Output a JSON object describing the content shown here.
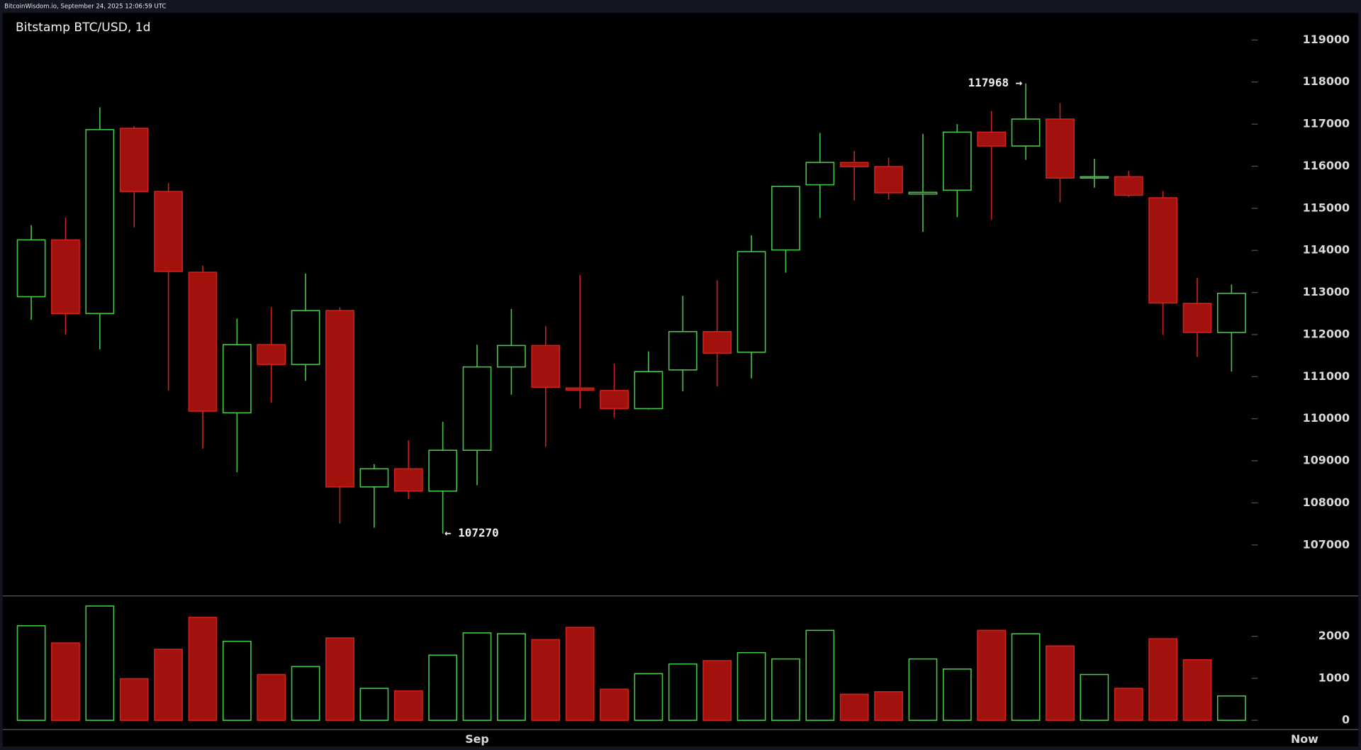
{
  "header": "BitcoinWisdom.io, September 24, 2025 12:06:59 UTC",
  "chart_data": [
    {
      "type": "candlestick",
      "title": "Bitstamp BTC/USD, 1d",
      "categories": [
        null,
        null,
        null,
        null,
        null,
        null,
        null,
        null,
        null,
        null,
        null,
        null,
        null,
        "Sep",
        null,
        null,
        null,
        null,
        null,
        null,
        null,
        null,
        null,
        null,
        null,
        null,
        null,
        null,
        null,
        null,
        null,
        null,
        null,
        null,
        null,
        null
      ],
      "x_end_label": "Now",
      "open": [
        112900,
        114250,
        112500,
        116900,
        115400,
        113480,
        110140,
        111760,
        111290,
        112570,
        108380,
        108810,
        108280,
        109250,
        111230,
        111740,
        110730,
        110670,
        110240,
        111160,
        112070,
        111580,
        114010,
        115560,
        116090,
        115990,
        115340,
        115430,
        116810,
        116480,
        117120,
        115720,
        115750,
        115250,
        112740,
        112050
      ],
      "high": [
        114600,
        114780,
        117400,
        116950,
        115600,
        113640,
        112380,
        112650,
        113450,
        112650,
        108920,
        109490,
        109930,
        111760,
        112610,
        112200,
        113410,
        111310,
        111600,
        112920,
        113290,
        114360,
        115530,
        116790,
        116360,
        116200,
        116770,
        117000,
        117310,
        117968,
        117500,
        116180,
        115890,
        115410,
        113350,
        113190
      ],
      "low": [
        112350,
        112000,
        111650,
        114550,
        110670,
        109290,
        108730,
        110380,
        110900,
        107510,
        107410,
        108090,
        107270,
        108420,
        110570,
        109330,
        110240,
        110030,
        110220,
        110650,
        110770,
        110960,
        113470,
        114770,
        115190,
        115210,
        114440,
        114790,
        114730,
        116150,
        115140,
        115490,
        115270,
        111990,
        111470,
        111120
      ],
      "close": [
        114250,
        112500,
        116870,
        115400,
        113500,
        110180,
        111760,
        111290,
        112570,
        108380,
        108810,
        108280,
        109250,
        111230,
        111740,
        110750,
        110680,
        110240,
        111120,
        112070,
        111560,
        113970,
        115520,
        116090,
        115990,
        115370,
        115380,
        116810,
        116480,
        117120,
        115720,
        115750,
        115310,
        112750,
        112050,
        112980
      ],
      "up_color": "#45c745",
      "down_color": "#a1120f",
      "down_stroke": "#d0201c",
      "ylim": [
        105800,
        119640
      ],
      "yticks": [
        107000,
        108000,
        109000,
        110000,
        111000,
        112000,
        113000,
        114000,
        115000,
        116000,
        117000,
        118000,
        119000
      ],
      "annotations": [
        {
          "label": "117968 →",
          "value": 117968
        },
        {
          "label": "← 107270",
          "value": 107270
        }
      ]
    },
    {
      "type": "volume",
      "values": [
        2250,
        1840,
        2720,
        990,
        1690,
        2450,
        1880,
        1090,
        1280,
        1960,
        760,
        700,
        1550,
        2080,
        2060,
        1920,
        2210,
        740,
        1110,
        1340,
        1420,
        1610,
        1460,
        2140,
        620,
        680,
        1460,
        1220,
        2140,
        2060,
        1770,
        1090,
        760,
        1940,
        1440,
        580
      ],
      "ylim": [
        -210,
        2950
      ],
      "yticks": [
        0,
        1000,
        2000
      ]
    }
  ]
}
